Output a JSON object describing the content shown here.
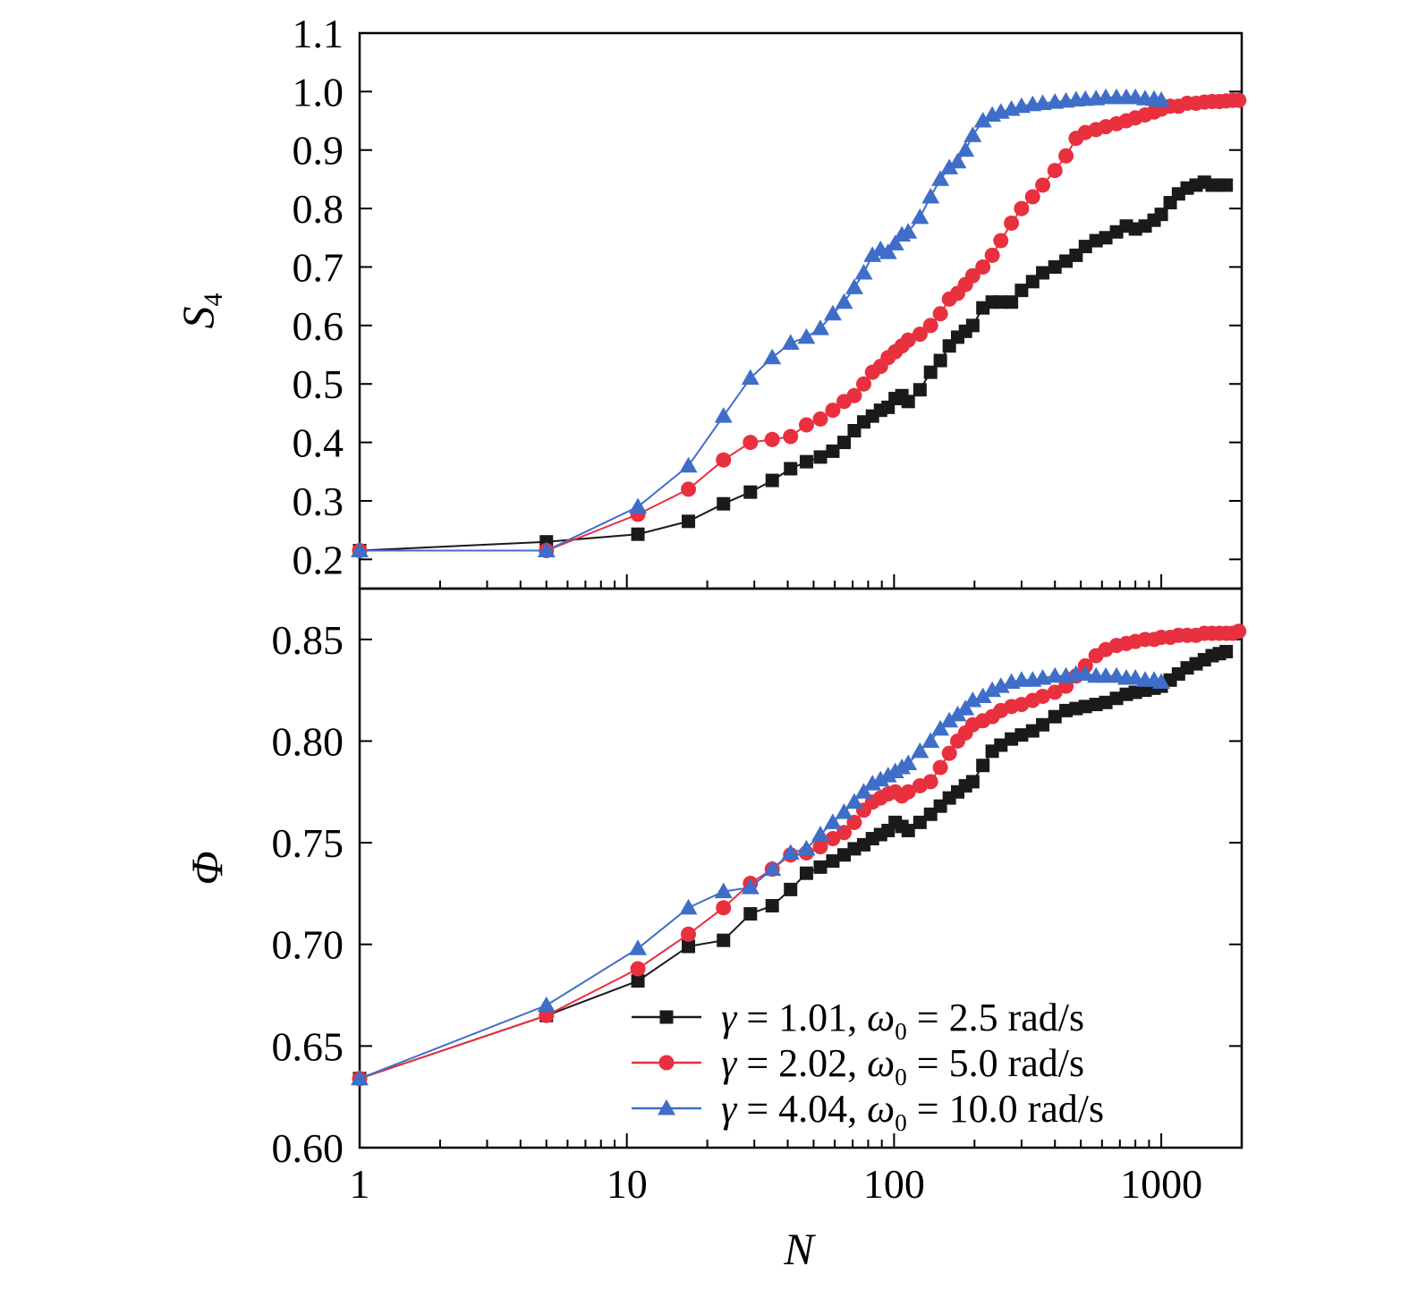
{
  "chart_data": [
    {
      "type": "line",
      "panel": "top",
      "xlabel": "N",
      "ylabel_main": "S",
      "ylabel_sub": "4",
      "xscale": "log",
      "xlim": [
        1,
        2000
      ],
      "ylim": [
        0.15,
        1.1
      ],
      "yticks": [
        "0.2",
        "0.3",
        "0.4",
        "0.5",
        "0.6",
        "0.7",
        "0.8",
        "0.9",
        "1.0",
        "1.1"
      ],
      "legend": "none",
      "series": [
        {
          "color": "#1a1a1a",
          "marker": "square",
          "x": [
            1,
            5,
            11,
            17,
            23,
            29,
            35,
            41,
            47,
            53,
            59,
            65,
            71,
            77,
            83,
            89,
            95,
            101,
            107,
            113,
            125,
            137,
            149,
            161,
            173,
            185,
            197,
            215,
            233,
            251,
            275,
            300,
            330,
            360,
            400,
            440,
            480,
            520,
            570,
            620,
            680,
            740,
            800,
            870,
            940,
            1000,
            1080,
            1160,
            1250,
            1350,
            1450,
            1550,
            1650,
            1750
          ],
          "y": [
            0.215,
            0.23,
            0.243,
            0.265,
            0.295,
            0.315,
            0.335,
            0.355,
            0.367,
            0.375,
            0.385,
            0.4,
            0.42,
            0.435,
            0.445,
            0.455,
            0.46,
            0.475,
            0.48,
            0.47,
            0.49,
            0.52,
            0.54,
            0.565,
            0.58,
            0.59,
            0.6,
            0.63,
            0.64,
            0.64,
            0.64,
            0.66,
            0.675,
            0.69,
            0.7,
            0.71,
            0.72,
            0.735,
            0.745,
            0.75,
            0.76,
            0.77,
            0.765,
            0.77,
            0.78,
            0.79,
            0.81,
            0.825,
            0.835,
            0.84,
            0.845,
            0.84,
            0.84,
            0.84
          ]
        },
        {
          "color": "#e8303f",
          "marker": "circle",
          "x": [
            1,
            5,
            11,
            17,
            23,
            29,
            35,
            41,
            47,
            53,
            59,
            65,
            71,
            77,
            83,
            89,
            95,
            101,
            107,
            113,
            125,
            137,
            149,
            161,
            173,
            185,
            197,
            215,
            233,
            251,
            275,
            300,
            330,
            360,
            400,
            440,
            480,
            520,
            570,
            620,
            680,
            740,
            800,
            870,
            940,
            1000,
            1080,
            1160,
            1250,
            1350,
            1450,
            1550,
            1650,
            1750,
            1850,
            1950
          ],
          "y": [
            0.215,
            0.215,
            0.277,
            0.32,
            0.37,
            0.4,
            0.405,
            0.41,
            0.43,
            0.44,
            0.455,
            0.47,
            0.48,
            0.5,
            0.52,
            0.53,
            0.545,
            0.555,
            0.565,
            0.575,
            0.585,
            0.6,
            0.62,
            0.645,
            0.655,
            0.67,
            0.685,
            0.7,
            0.72,
            0.745,
            0.775,
            0.8,
            0.82,
            0.84,
            0.865,
            0.89,
            0.92,
            0.93,
            0.935,
            0.94,
            0.945,
            0.95,
            0.955,
            0.96,
            0.965,
            0.97,
            0.975,
            0.975,
            0.98,
            0.98,
            0.982,
            0.983,
            0.983,
            0.984,
            0.985,
            0.985
          ]
        },
        {
          "color": "#3f6ec8",
          "marker": "triangle",
          "x": [
            1,
            5,
            11,
            17,
            23,
            29,
            35,
            41,
            47,
            53,
            59,
            65,
            71,
            77,
            83,
            89,
            95,
            101,
            107,
            113,
            125,
            137,
            149,
            161,
            173,
            185,
            197,
            215,
            233,
            251,
            275,
            300,
            330,
            360,
            400,
            440,
            480,
            520,
            570,
            620,
            680,
            740,
            800,
            870,
            940,
            1000
          ],
          "y": [
            0.215,
            0.215,
            0.29,
            0.36,
            0.445,
            0.51,
            0.545,
            0.57,
            0.58,
            0.595,
            0.62,
            0.64,
            0.665,
            0.69,
            0.72,
            0.73,
            0.725,
            0.74,
            0.755,
            0.76,
            0.785,
            0.82,
            0.85,
            0.87,
            0.88,
            0.9,
            0.925,
            0.95,
            0.96,
            0.965,
            0.97,
            0.975,
            0.978,
            0.98,
            0.982,
            0.984,
            0.986,
            0.987,
            0.988,
            0.99,
            0.99,
            0.99,
            0.99,
            0.988,
            0.987,
            0.985
          ]
        }
      ]
    },
    {
      "type": "line",
      "panel": "bottom",
      "xlabel": "N",
      "ylabel": "Φ",
      "xscale": "log",
      "xlim": [
        1,
        2000
      ],
      "ylim": [
        0.6,
        0.875
      ],
      "xticks": [
        "1",
        "10",
        "100",
        "1000"
      ],
      "yticks": [
        "0.60",
        "0.65",
        "0.70",
        "0.75",
        "0.80",
        "0.85"
      ],
      "legend": "lower-right",
      "series": [
        {
          "legend_label": [
            "γ",
            " = 1.01, ",
            "ω",
            "0",
            " = 2.5 rad/s"
          ],
          "color": "#1a1a1a",
          "marker": "square",
          "x": [
            1,
            5,
            11,
            17,
            23,
            29,
            35,
            41,
            47,
            53,
            59,
            65,
            71,
            77,
            83,
            89,
            95,
            101,
            107,
            113,
            125,
            137,
            149,
            161,
            173,
            185,
            197,
            215,
            233,
            251,
            275,
            300,
            330,
            360,
            400,
            440,
            480,
            520,
            570,
            620,
            680,
            740,
            800,
            870,
            940,
            1000,
            1080,
            1160,
            1250,
            1350,
            1450,
            1550,
            1650,
            1750
          ],
          "y": [
            0.634,
            0.665,
            0.682,
            0.699,
            0.702,
            0.715,
            0.719,
            0.727,
            0.735,
            0.738,
            0.741,
            0.744,
            0.747,
            0.749,
            0.752,
            0.754,
            0.756,
            0.76,
            0.758,
            0.756,
            0.76,
            0.764,
            0.768,
            0.772,
            0.775,
            0.778,
            0.78,
            0.788,
            0.795,
            0.798,
            0.801,
            0.803,
            0.805,
            0.808,
            0.812,
            0.815,
            0.816,
            0.817,
            0.818,
            0.819,
            0.821,
            0.823,
            0.824,
            0.825,
            0.826,
            0.827,
            0.83,
            0.833,
            0.836,
            0.838,
            0.84,
            0.842,
            0.843,
            0.844
          ]
        },
        {
          "legend_label": [
            "γ",
            " = 2.02, ",
            "ω",
            "0",
            " = 5.0 rad/s"
          ],
          "color": "#e8303f",
          "marker": "circle",
          "x": [
            1,
            5,
            11,
            17,
            23,
            29,
            35,
            41,
            47,
            53,
            59,
            65,
            71,
            77,
            83,
            89,
            95,
            101,
            107,
            113,
            125,
            137,
            149,
            161,
            173,
            185,
            197,
            215,
            233,
            251,
            275,
            300,
            330,
            360,
            400,
            440,
            480,
            520,
            570,
            620,
            680,
            740,
            800,
            870,
            940,
            1000,
            1080,
            1160,
            1250,
            1350,
            1450,
            1550,
            1650,
            1750,
            1850,
            1950
          ],
          "y": [
            0.634,
            0.665,
            0.688,
            0.705,
            0.718,
            0.73,
            0.737,
            0.744,
            0.745,
            0.748,
            0.752,
            0.755,
            0.76,
            0.766,
            0.77,
            0.772,
            0.774,
            0.775,
            0.773,
            0.775,
            0.778,
            0.78,
            0.787,
            0.794,
            0.8,
            0.804,
            0.808,
            0.81,
            0.812,
            0.815,
            0.817,
            0.818,
            0.82,
            0.822,
            0.824,
            0.827,
            0.832,
            0.837,
            0.842,
            0.845,
            0.847,
            0.848,
            0.849,
            0.85,
            0.85,
            0.851,
            0.851,
            0.852,
            0.852,
            0.852,
            0.853,
            0.853,
            0.853,
            0.853,
            0.853,
            0.854
          ]
        },
        {
          "legend_label": [
            "γ",
            " = 4.04, ",
            "ω",
            "0",
            " = 10.0 rad/s"
          ],
          "color": "#3f6ec8",
          "marker": "triangle",
          "x": [
            1,
            5,
            11,
            17,
            23,
            29,
            35,
            41,
            47,
            53,
            59,
            65,
            71,
            77,
            83,
            89,
            95,
            101,
            107,
            113,
            125,
            137,
            149,
            161,
            173,
            185,
            197,
            215,
            233,
            251,
            275,
            300,
            330,
            360,
            400,
            440,
            480,
            520,
            570,
            620,
            680,
            740,
            800,
            870,
            940,
            1000
          ],
          "y": [
            0.634,
            0.67,
            0.698,
            0.718,
            0.726,
            0.728,
            0.737,
            0.745,
            0.747,
            0.754,
            0.76,
            0.765,
            0.77,
            0.775,
            0.779,
            0.781,
            0.783,
            0.785,
            0.787,
            0.789,
            0.795,
            0.8,
            0.806,
            0.81,
            0.813,
            0.816,
            0.82,
            0.822,
            0.825,
            0.827,
            0.829,
            0.83,
            0.83,
            0.831,
            0.832,
            0.832,
            0.833,
            0.833,
            0.832,
            0.832,
            0.832,
            0.831,
            0.831,
            0.83,
            0.83,
            0.829
          ]
        }
      ]
    }
  ]
}
